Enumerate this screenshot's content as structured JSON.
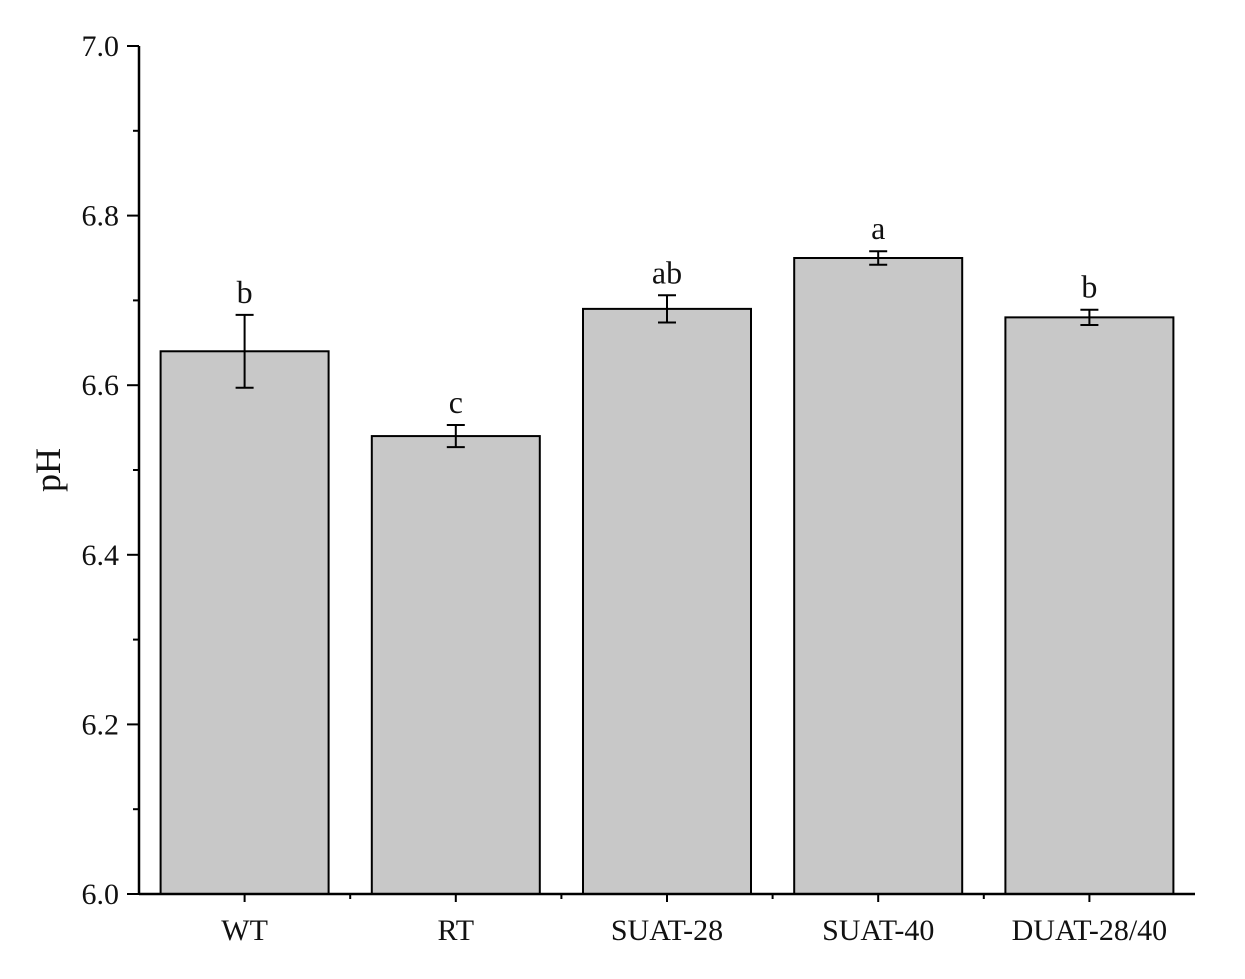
{
  "chart_data": {
    "type": "bar",
    "title": "",
    "xlabel": "",
    "ylabel": "pH",
    "ylim": [
      6.0,
      7.0
    ],
    "yticks": [
      "6.0",
      "6.2",
      "6.4",
      "6.6",
      "6.8",
      "7.0"
    ],
    "grid": false,
    "categories": [
      "WT",
      "RT",
      "SUAT-28",
      "SUAT-40",
      "DUAT-28/40"
    ],
    "values": [
      6.64,
      6.54,
      6.69,
      6.75,
      6.68
    ],
    "errors": [
      0.043,
      0.013,
      0.016,
      0.008,
      0.009
    ],
    "significance": [
      "b",
      "c",
      "ab",
      "a",
      "b"
    ],
    "colors": {
      "bar_fill": "#c8c8c8",
      "bar_stroke": "#000000",
      "axis": "#000000"
    }
  }
}
